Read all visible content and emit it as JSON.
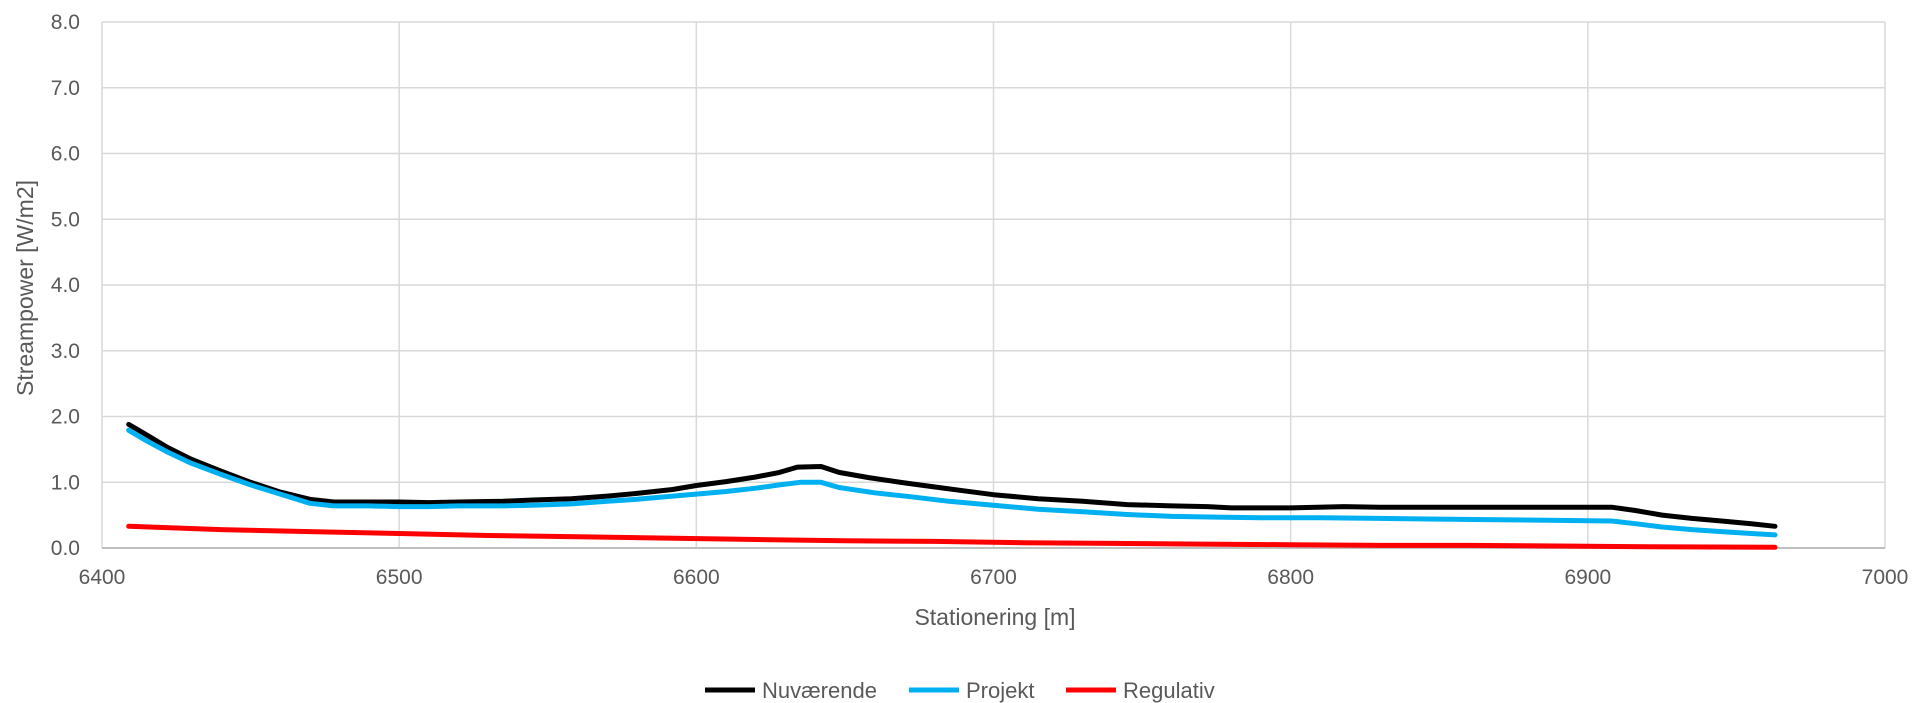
{
  "chart_data": {
    "type": "line",
    "xlabel": "Stationering [m]",
    "ylabel": "Streampower [W/m2]",
    "xlim": [
      6400,
      7000
    ],
    "ylim": [
      0,
      8
    ],
    "x_ticks": [
      6400,
      6500,
      6600,
      6700,
      6800,
      6900,
      7000
    ],
    "y_ticks": [
      0.0,
      1.0,
      2.0,
      3.0,
      4.0,
      5.0,
      6.0,
      7.0,
      8.0
    ],
    "grid": true,
    "legend_position": "bottom-center",
    "series": [
      {
        "name": "Nuværende",
        "color": "#000000",
        "points": [
          [
            6409,
            1.88
          ],
          [
            6415,
            1.72
          ],
          [
            6422,
            1.53
          ],
          [
            6430,
            1.35
          ],
          [
            6440,
            1.17
          ],
          [
            6450,
            1.0
          ],
          [
            6460,
            0.85
          ],
          [
            6470,
            0.74
          ],
          [
            6478,
            0.7
          ],
          [
            6490,
            0.7
          ],
          [
            6500,
            0.7
          ],
          [
            6510,
            0.69
          ],
          [
            6520,
            0.7
          ],
          [
            6535,
            0.71
          ],
          [
            6545,
            0.73
          ],
          [
            6558,
            0.75
          ],
          [
            6570,
            0.79
          ],
          [
            6580,
            0.83
          ],
          [
            6592,
            0.89
          ],
          [
            6600,
            0.95
          ],
          [
            6610,
            1.01
          ],
          [
            6620,
            1.08
          ],
          [
            6628,
            1.15
          ],
          [
            6634,
            1.23
          ],
          [
            6642,
            1.24
          ],
          [
            6648,
            1.15
          ],
          [
            6658,
            1.07
          ],
          [
            6670,
            0.99
          ],
          [
            6680,
            0.93
          ],
          [
            6690,
            0.87
          ],
          [
            6700,
            0.81
          ],
          [
            6715,
            0.75
          ],
          [
            6730,
            0.71
          ],
          [
            6745,
            0.66
          ],
          [
            6760,
            0.64
          ],
          [
            6772,
            0.63
          ],
          [
            6780,
            0.61
          ],
          [
            6800,
            0.61
          ],
          [
            6818,
            0.63
          ],
          [
            6830,
            0.62
          ],
          [
            6850,
            0.62
          ],
          [
            6880,
            0.62
          ],
          [
            6908,
            0.62
          ],
          [
            6916,
            0.57
          ],
          [
            6925,
            0.5
          ],
          [
            6935,
            0.45
          ],
          [
            6945,
            0.41
          ],
          [
            6955,
            0.37
          ],
          [
            6963,
            0.33
          ]
        ]
      },
      {
        "name": "Projekt",
        "color": "#00B0F0",
        "points": [
          [
            6409,
            1.79
          ],
          [
            6415,
            1.63
          ],
          [
            6422,
            1.46
          ],
          [
            6430,
            1.29
          ],
          [
            6440,
            1.12
          ],
          [
            6450,
            0.96
          ],
          [
            6460,
            0.82
          ],
          [
            6470,
            0.68
          ],
          [
            6478,
            0.64
          ],
          [
            6490,
            0.64
          ],
          [
            6500,
            0.63
          ],
          [
            6510,
            0.63
          ],
          [
            6520,
            0.64
          ],
          [
            6535,
            0.64
          ],
          [
            6545,
            0.65
          ],
          [
            6558,
            0.67
          ],
          [
            6570,
            0.71
          ],
          [
            6580,
            0.74
          ],
          [
            6592,
            0.79
          ],
          [
            6600,
            0.82
          ],
          [
            6610,
            0.86
          ],
          [
            6620,
            0.91
          ],
          [
            6628,
            0.96
          ],
          [
            6635,
            1.0
          ],
          [
            6642,
            1.0
          ],
          [
            6648,
            0.92
          ],
          [
            6660,
            0.84
          ],
          [
            6672,
            0.78
          ],
          [
            6685,
            0.71
          ],
          [
            6700,
            0.65
          ],
          [
            6715,
            0.59
          ],
          [
            6730,
            0.55
          ],
          [
            6745,
            0.51
          ],
          [
            6760,
            0.48
          ],
          [
            6775,
            0.47
          ],
          [
            6790,
            0.46
          ],
          [
            6810,
            0.46
          ],
          [
            6830,
            0.45
          ],
          [
            6850,
            0.44
          ],
          [
            6870,
            0.43
          ],
          [
            6890,
            0.42
          ],
          [
            6908,
            0.41
          ],
          [
            6916,
            0.37
          ],
          [
            6925,
            0.32
          ],
          [
            6935,
            0.28
          ],
          [
            6945,
            0.25
          ],
          [
            6955,
            0.22
          ],
          [
            6963,
            0.2
          ]
        ]
      },
      {
        "name": "Regulativ",
        "color": "#FF0000",
        "points": [
          [
            6409,
            0.33
          ],
          [
            6440,
            0.28
          ],
          [
            6470,
            0.25
          ],
          [
            6500,
            0.22
          ],
          [
            6530,
            0.19
          ],
          [
            6560,
            0.17
          ],
          [
            6590,
            0.15
          ],
          [
            6620,
            0.13
          ],
          [
            6650,
            0.11
          ],
          [
            6680,
            0.1
          ],
          [
            6710,
            0.08
          ],
          [
            6740,
            0.07
          ],
          [
            6770,
            0.06
          ],
          [
            6800,
            0.05
          ],
          [
            6830,
            0.04
          ],
          [
            6860,
            0.04
          ],
          [
            6890,
            0.03
          ],
          [
            6920,
            0.02
          ],
          [
            6963,
            0.01
          ]
        ]
      }
    ]
  }
}
